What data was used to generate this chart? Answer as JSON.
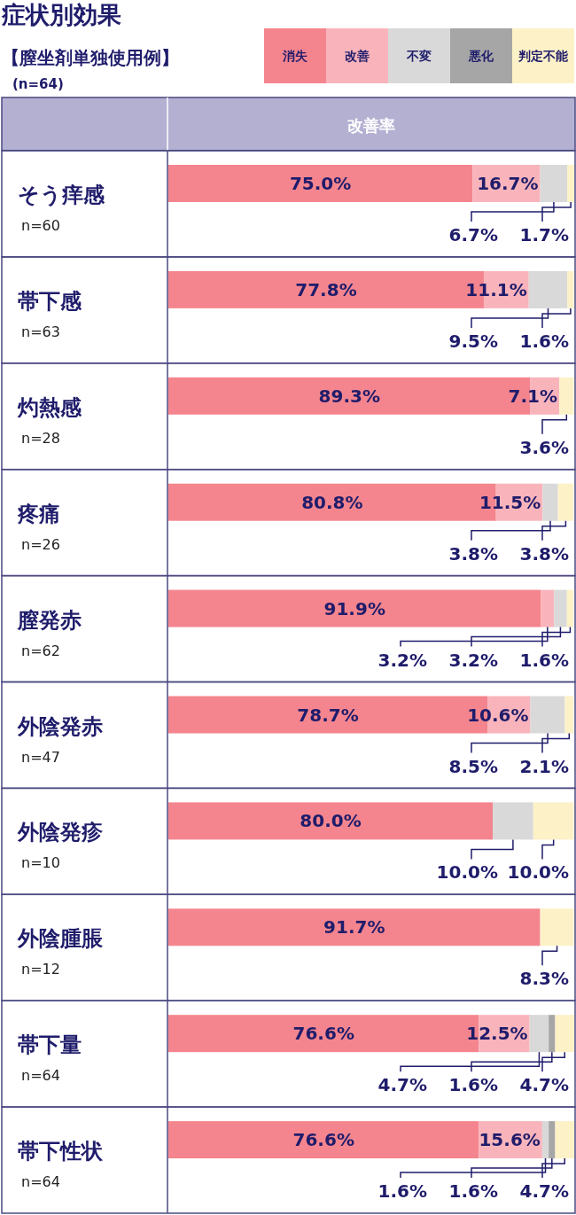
{
  "chart_data": {
    "type": "bar",
    "orientation": "horizontal",
    "stacked": true,
    "title": "症状別効果",
    "subtitle": "【膣坐剤単独使用例】\n(n=64)",
    "xlabel": "改善率",
    "legend": "top right",
    "grid": true,
    "categories": [
      "そう痒感\nn=60",
      "帯下感\nn=63",
      "灼熱感\nn=28",
      "疼痛\nn=26",
      "膣発赤\nn=62",
      "外陰発赤\nn=47",
      "外陰発疹\nn=10",
      "外陰腫脹\nn=12",
      "帯下量\nn=64",
      "帯下性状\nn=64"
    ],
    "series": [
      {
        "name": "消失",
        "color": "#f4858e",
        "values": [
          75.0,
          77.8,
          89.3,
          80.8,
          91.9,
          78.7,
          80.0,
          91.7,
          76.6,
          76.6
        ],
        "value_labels": [
          "75.0%",
          "77.8%",
          "89.3%",
          "80.8%",
          "91.9%",
          "78.7%",
          "80.0%",
          "91.7%",
          "76.6%",
          "76.6%"
        ]
      },
      {
        "name": "改善",
        "color": "#f9b4bb",
        "values": [
          16.7,
          11.1,
          7.1,
          11.5,
          3.2,
          10.6,
          0,
          0,
          12.5,
          15.6
        ],
        "value_labels": [
          "16.7%",
          "11.1%",
          "7.1%",
          "11.5%",
          "3.2%",
          "10.6%",
          null,
          null,
          "12.5%",
          "15.6%"
        ]
      },
      {
        "name": "不変",
        "color": "#d9d9d9",
        "values": [
          6.7,
          9.5,
          0,
          3.8,
          3.2,
          8.5,
          10.0,
          0,
          4.7,
          1.6
        ],
        "value_labels": [
          "6.7%",
          "9.5%",
          null,
          "3.8%",
          "3.2%",
          "8.5%",
          "10.0%",
          null,
          "4.7%",
          "1.6%"
        ]
      },
      {
        "name": "悪化",
        "color": "#a6a6a6",
        "values": [
          0,
          0,
          0,
          0,
          0,
          0,
          0,
          0,
          1.6,
          1.6
        ],
        "value_labels": [
          null,
          null,
          null,
          null,
          null,
          null,
          null,
          null,
          "1.6%",
          "1.6%"
        ]
      },
      {
        "name": "判定不能",
        "color": "#fdf1c7",
        "values": [
          1.7,
          1.6,
          3.6,
          3.8,
          1.6,
          2.1,
          10.0,
          8.3,
          4.7,
          4.7
        ],
        "value_labels": [
          "1.7%",
          "1.6%",
          "3.6%",
          "3.8%",
          "1.6%",
          "2.1%",
          "10.0%",
          "8.3%",
          "4.7%",
          "4.7%"
        ]
      }
    ]
  }
}
